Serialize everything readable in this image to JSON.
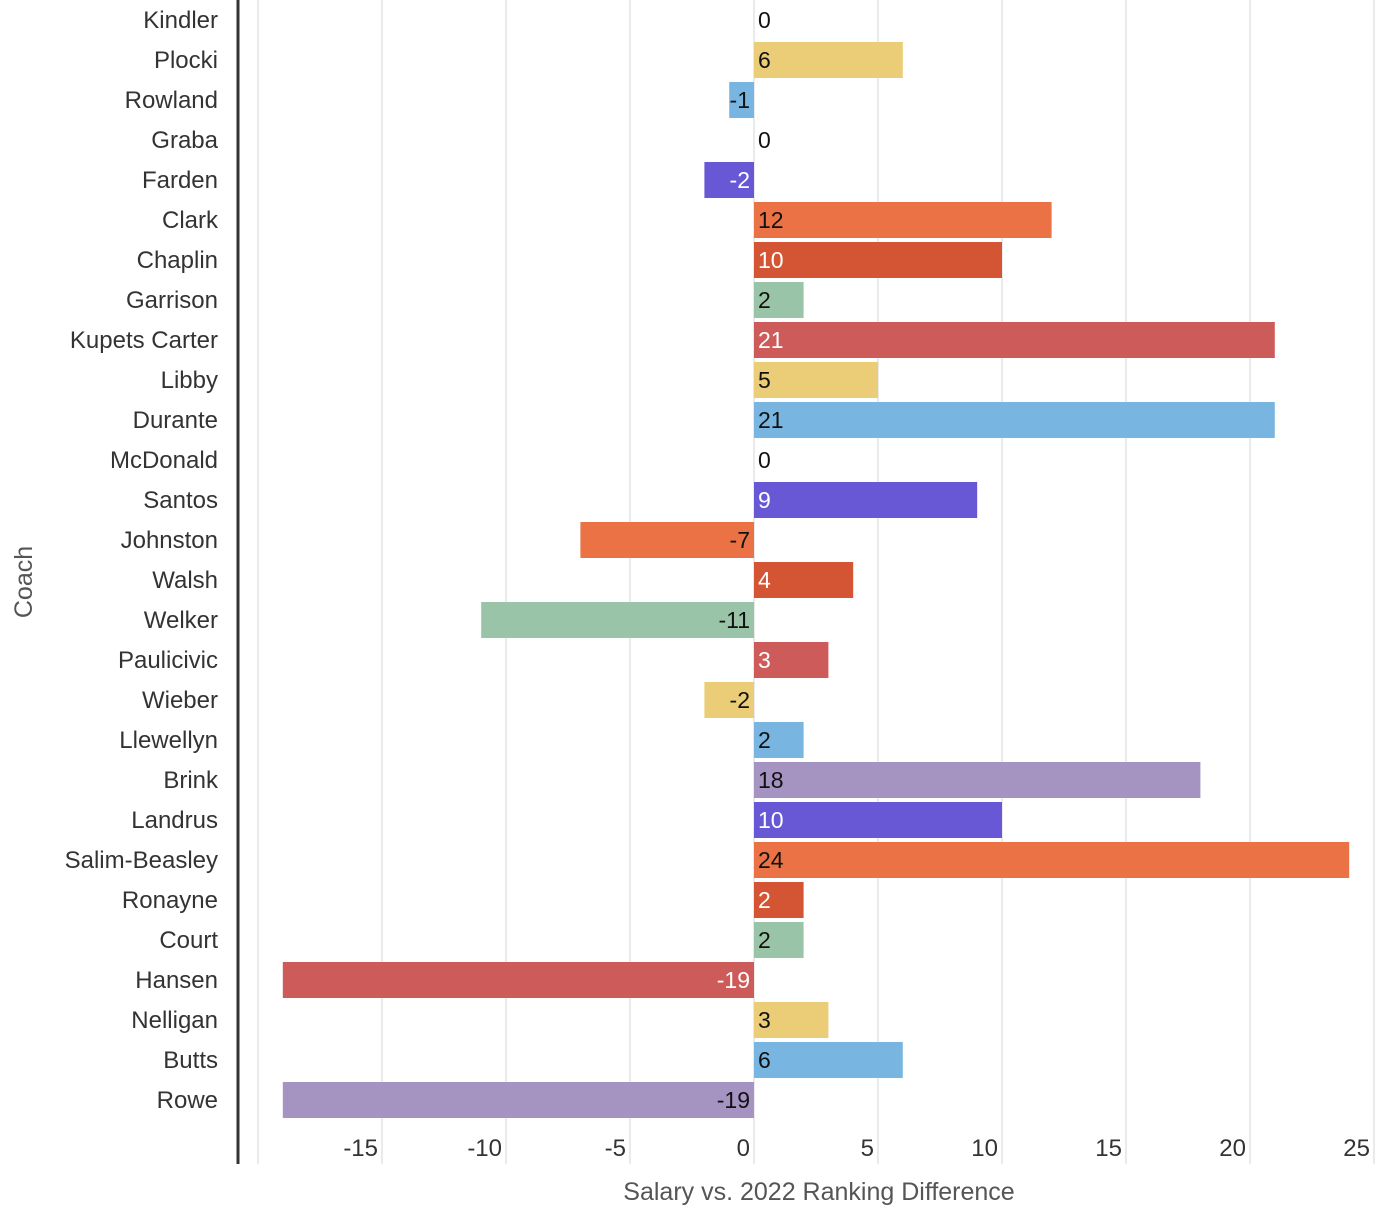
{
  "chart_data": {
    "type": "bar",
    "orientation": "horizontal",
    "title": "",
    "xlabel": "Salary vs. 2022 Ranking Difference",
    "ylabel": "Coach",
    "xlim": [
      -20,
      25
    ],
    "x_ticks": [
      -15,
      -10,
      -5,
      0,
      5,
      10,
      15,
      20,
      25
    ],
    "grid": true,
    "categories": [
      "Kindler",
      "Plocki",
      "Rowland",
      "Graba",
      "Farden",
      "Clark",
      "Chaplin",
      "Garrison",
      "Kupets Carter",
      "Libby",
      "Durante",
      "McDonald",
      "Santos",
      "Johnston",
      "Walsh",
      "Welker",
      "Paulicivic",
      "Wieber",
      "Llewellyn",
      "Brink",
      "Landrus",
      "Salim-Beasley",
      "Ronayne",
      "Court",
      "Hansen",
      "Nelligan",
      "Butts",
      "Rowe"
    ],
    "values": [
      0,
      6,
      -1,
      0,
      -2,
      12,
      10,
      2,
      21,
      5,
      21,
      0,
      9,
      -7,
      4,
      -11,
      3,
      -2,
      2,
      18,
      10,
      24,
      2,
      2,
      -19,
      3,
      6,
      -19
    ],
    "colors": [
      "#9ac4a7",
      "#ebcd78",
      "#78b5e0",
      "#a593c2",
      "#6958d6",
      "#eb7245",
      "#d45533",
      "#9ac4a7",
      "#cc5b59",
      "#ebcd78",
      "#78b5e0",
      "#a593c2",
      "#6958d6",
      "#eb7245",
      "#d45533",
      "#9ac4a7",
      "#cc5b59",
      "#ebcd78",
      "#78b5e0",
      "#a593c2",
      "#6958d6",
      "#eb7245",
      "#d45533",
      "#9ac4a7",
      "#cc5b59",
      "#ebcd78",
      "#78b5e0",
      "#a593c2"
    ],
    "label_colors": [
      "#111111",
      "#111111",
      "#111111",
      "#111111",
      "#ffffff",
      "#111111",
      "#ffffff",
      "#111111",
      "#ffffff",
      "#111111",
      "#111111",
      "#111111",
      "#ffffff",
      "#111111",
      "#ffffff",
      "#111111",
      "#ffffff",
      "#111111",
      "#111111",
      "#111111",
      "#ffffff",
      "#111111",
      "#ffffff",
      "#111111",
      "#ffffff",
      "#111111",
      "#111111",
      "#111111"
    ]
  }
}
